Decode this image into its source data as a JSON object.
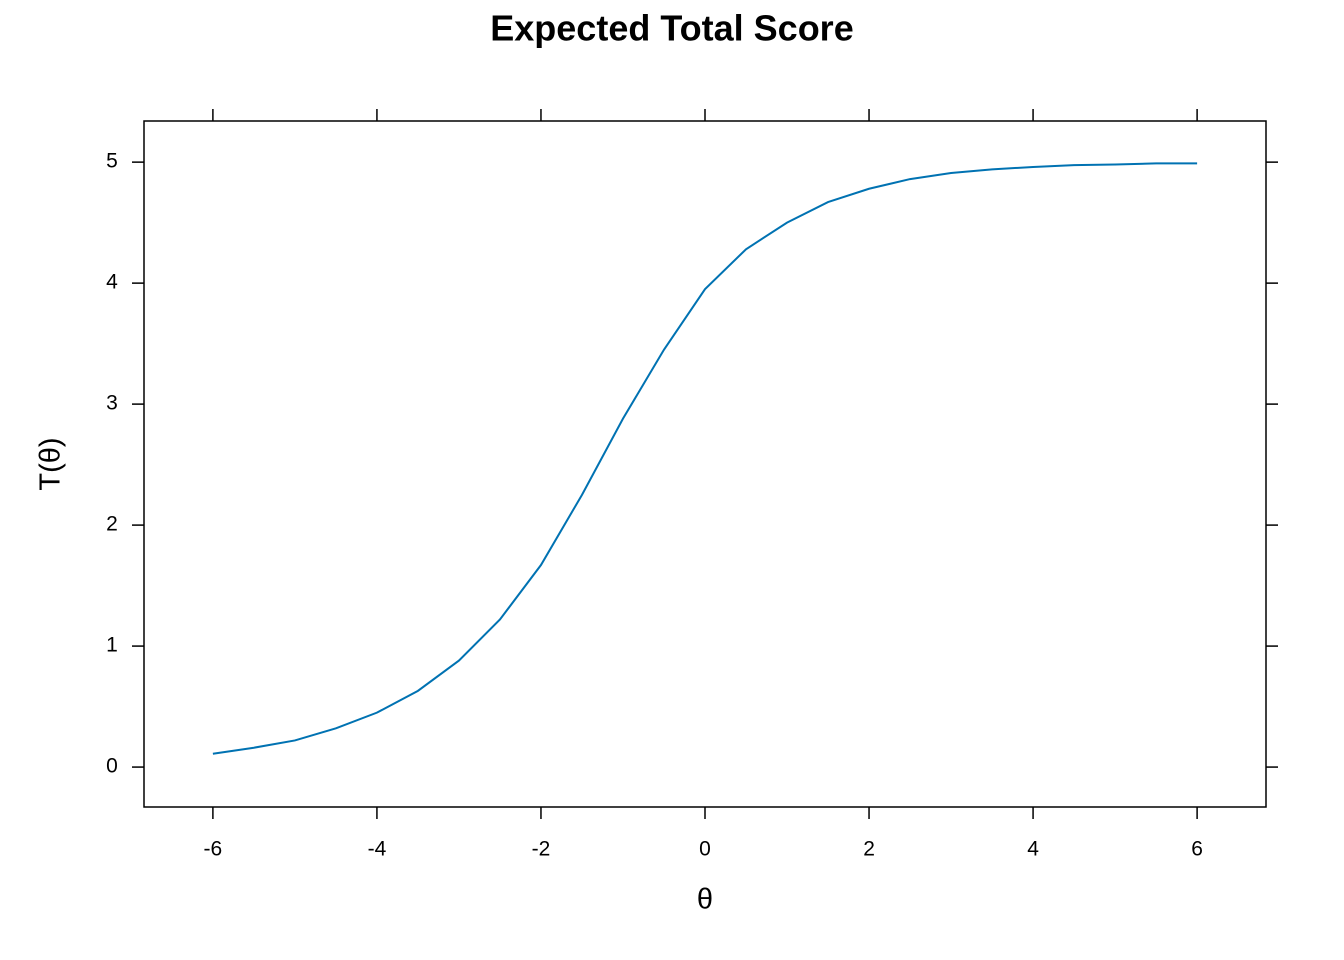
{
  "chart_data": {
    "type": "line",
    "title": "Expected Total Score",
    "x_label": "θ",
    "y_label": "T(θ)",
    "x": [
      -6,
      -5.5,
      -5,
      -4.5,
      -4,
      -3.5,
      -3,
      -2.5,
      -2,
      -1.5,
      -1,
      -0.5,
      0,
      0.5,
      1,
      1.5,
      2,
      2.5,
      3,
      3.5,
      4,
      4.5,
      5,
      5.5,
      6
    ],
    "series": [
      {
        "color": "#0072b2",
        "values": [
          0.11,
          0.16,
          0.22,
          0.32,
          0.45,
          0.63,
          0.88,
          1.22,
          1.67,
          2.25,
          2.88,
          3.45,
          3.95,
          4.28,
          4.5,
          4.67,
          4.78,
          4.86,
          4.91,
          4.94,
          4.96,
          4.975,
          4.98,
          4.99,
          4.99
        ]
      }
    ],
    "xlim": [
      -6.84,
      6.84
    ],
    "ylim": [
      -0.33,
      5.34
    ],
    "xticks": [
      -6,
      -4,
      -2,
      0,
      2,
      4,
      6
    ],
    "yticks": [
      0,
      1,
      2,
      3,
      4,
      5
    ]
  }
}
